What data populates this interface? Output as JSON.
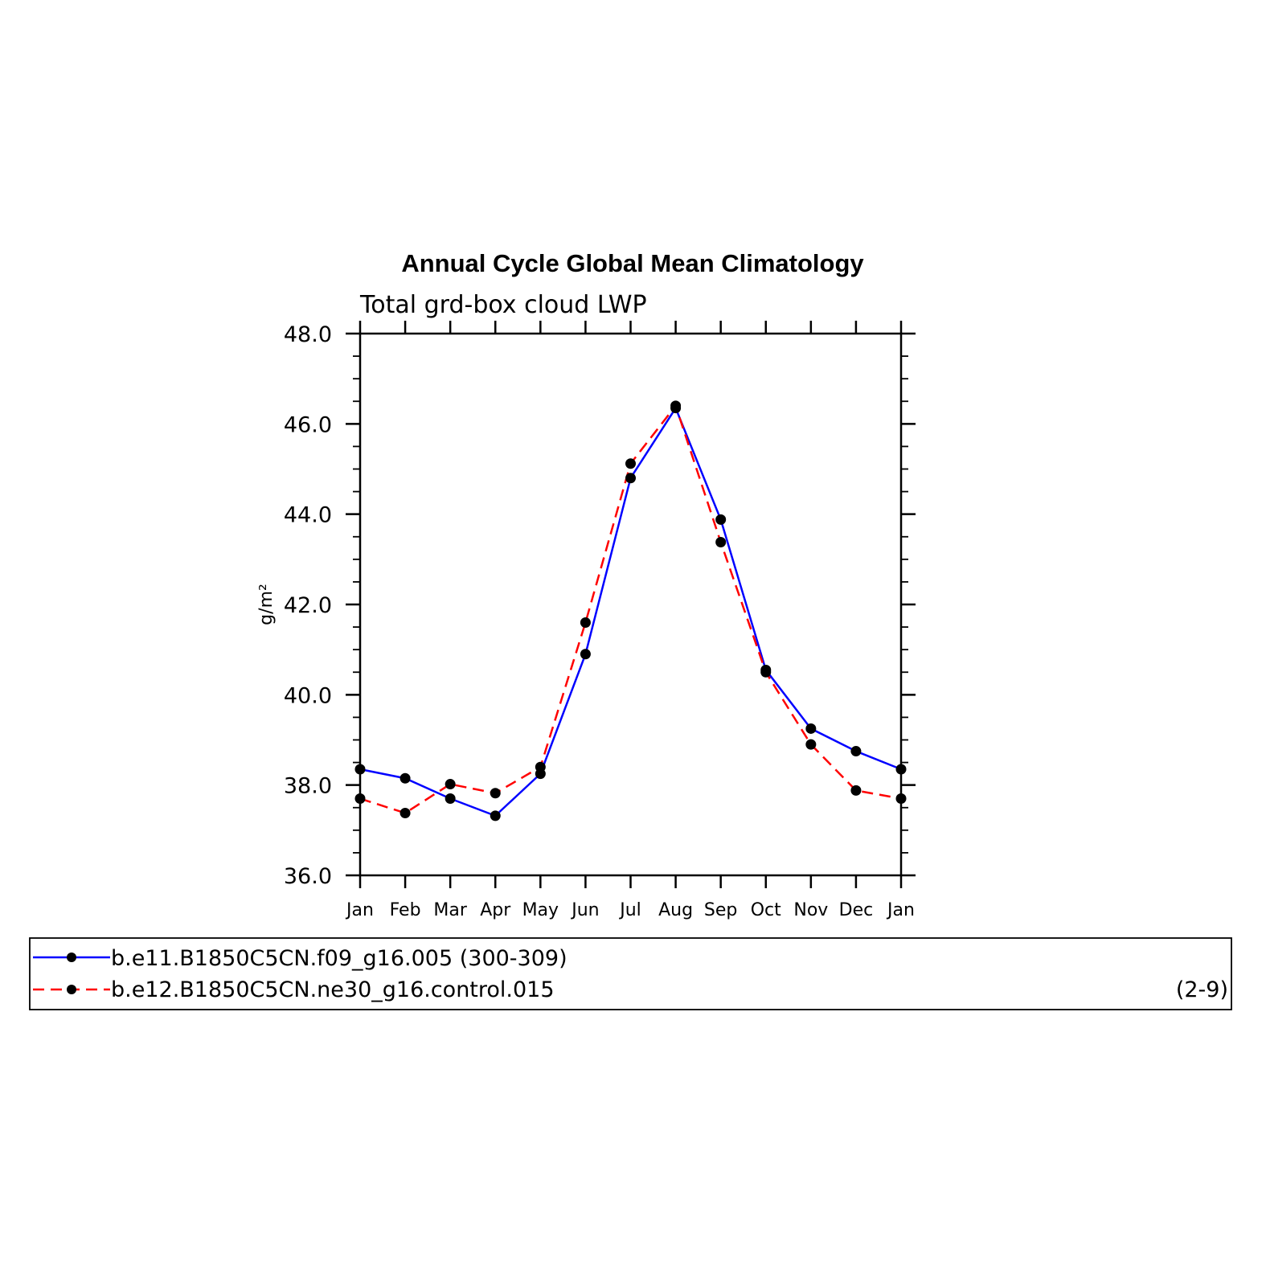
{
  "chart_data": {
    "type": "line",
    "title": "Annual Cycle Global Mean Climatology",
    "subtitle": "Total grd-box cloud LWP",
    "ylabel": "g/m²",
    "xlabel": "",
    "categories": [
      "Jan",
      "Feb",
      "Mar",
      "Apr",
      "May",
      "Jun",
      "Jul",
      "Aug",
      "Sep",
      "Oct",
      "Nov",
      "Dec",
      "Jan"
    ],
    "ylim": [
      36.0,
      48.0
    ],
    "yticks": [
      "36.0",
      "38.0",
      "40.0",
      "42.0",
      "44.0",
      "46.0",
      "48.0"
    ],
    "grid": false,
    "legend_placement": "bottom",
    "series": [
      {
        "name": "b.e11.B1850C5CN.f09_g16.005 (300-309)",
        "color": "#0000ff",
        "dash": "solid",
        "marker": "filled-circle",
        "values": [
          38.35,
          38.15,
          37.7,
          37.32,
          38.25,
          40.9,
          44.8,
          46.35,
          43.88,
          40.55,
          39.25,
          38.75,
          38.35
        ]
      },
      {
        "name": "b.e12.B1850C5CN.ne30_g16.control.015",
        "color": "#ff0000",
        "dash": "dashed",
        "marker": "filled-circle",
        "values": [
          37.7,
          37.38,
          38.02,
          37.82,
          38.4,
          41.6,
          45.12,
          46.4,
          43.38,
          40.5,
          38.9,
          37.88,
          37.7
        ]
      }
    ],
    "legend_extra": "(2-9)"
  }
}
